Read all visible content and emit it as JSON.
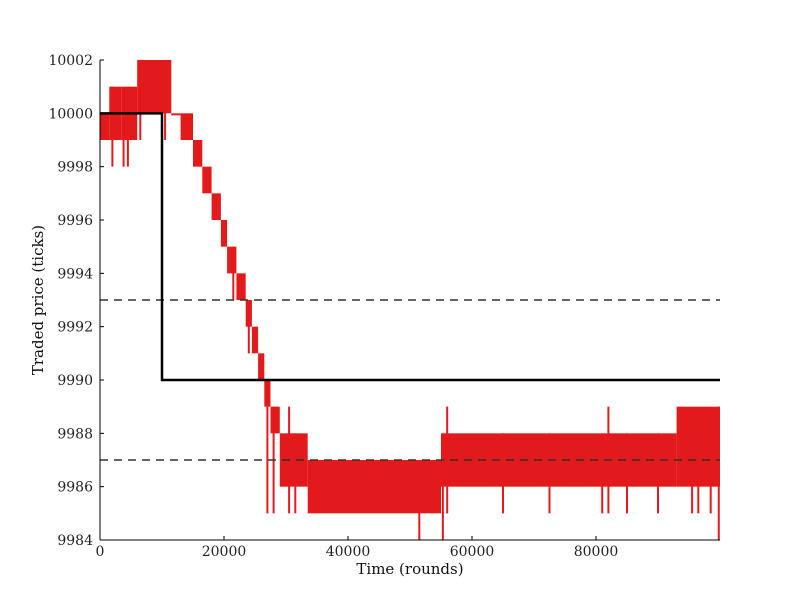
{
  "chart_data": {
    "type": "line",
    "xlabel": "Time (rounds)",
    "ylabel": "Traded price (ticks)",
    "xlim": [
      0,
      100000
    ],
    "ylim": [
      9984,
      10002
    ],
    "x_ticks": [
      0,
      20000,
      40000,
      60000,
      80000
    ],
    "x_tick_labels": [
      "0",
      "20000",
      "40000",
      "60000",
      "80000"
    ],
    "y_ticks": [
      9984,
      9986,
      9988,
      9990,
      9992,
      9994,
      9996,
      9998,
      10000,
      10002
    ],
    "y_tick_labels": [
      "9984",
      "9986",
      "9988",
      "9990",
      "9992",
      "9994",
      "9996",
      "9998",
      "10000",
      "10002"
    ],
    "grid": false,
    "legend": "none",
    "series": [
      {
        "style": "step",
        "color": "#000000",
        "x": [
          0,
          10000,
          10000,
          100000
        ],
        "y": [
          10000,
          10000,
          9990,
          9990
        ]
      },
      {
        "style": "dashed",
        "color": "#333333",
        "x": [
          0,
          100000
        ],
        "y": [
          9993,
          9993
        ]
      },
      {
        "style": "dashed",
        "color": "#333333",
        "x": [
          0,
          100000
        ],
        "y": [
          9987,
          9987
        ]
      },
      {
        "style": "band",
        "color": "#e31a1c",
        "segments": [
          {
            "x": [
              0,
              1500
            ],
            "low": 9999,
            "high": 10000
          },
          {
            "x": [
              1500,
              3500
            ],
            "low": 9999,
            "high": 10001
          },
          {
            "x": [
              3500,
              6000
            ],
            "low": 9999,
            "high": 10001
          },
          {
            "x": [
              6000,
              11500
            ],
            "low": 10000,
            "high": 10002
          },
          {
            "x": [
              11500,
              13000
            ],
            "low": 10000,
            "high": 10000
          },
          {
            "x": [
              13000,
              15000
            ],
            "low": 9999,
            "high": 10000
          },
          {
            "x": [
              15000,
              16500
            ],
            "low": 9998,
            "high": 9999
          },
          {
            "x": [
              16500,
              18000
            ],
            "low": 9997,
            "high": 9998
          },
          {
            "x": [
              18000,
              19500
            ],
            "low": 9996,
            "high": 9997
          },
          {
            "x": [
              19500,
              20500
            ],
            "low": 9995,
            "high": 9996
          },
          {
            "x": [
              20500,
              22000
            ],
            "low": 9994,
            "high": 9995
          },
          {
            "x": [
              22000,
              23500
            ],
            "low": 9993,
            "high": 9994
          },
          {
            "x": [
              23500,
              24500
            ],
            "low": 9992,
            "high": 9993
          },
          {
            "x": [
              24500,
              25500
            ],
            "low": 9991,
            "high": 9992
          },
          {
            "x": [
              25500,
              26500
            ],
            "low": 9990,
            "high": 9991
          },
          {
            "x": [
              26500,
              27500
            ],
            "low": 9989,
            "high": 9990
          },
          {
            "x": [
              27500,
              29000
            ],
            "low": 9988,
            "high": 9989
          },
          {
            "x": [
              29000,
              33500
            ],
            "low": 9986,
            "high": 9988
          },
          {
            "x": [
              33500,
              55000
            ],
            "low": 9985,
            "high": 9987
          },
          {
            "x": [
              55000,
              93000
            ],
            "low": 9986,
            "high": 9988
          },
          {
            "x": [
              93000,
              100000
            ],
            "low": 9986,
            "high": 9989
          }
        ],
        "spikes": [
          {
            "x": 2000,
            "low": 9998,
            "high": 10001
          },
          {
            "x": 3800,
            "low": 9998,
            "high": 10000
          },
          {
            "x": 4500,
            "low": 9998,
            "high": 10001
          },
          {
            "x": 6500,
            "low": 9999,
            "high": 10002
          },
          {
            "x": 10500,
            "low": 9999,
            "high": 10001
          },
          {
            "x": 21500,
            "low": 9993,
            "high": 9995
          },
          {
            "x": 24000,
            "low": 9991,
            "high": 9993
          },
          {
            "x": 27000,
            "low": 9985,
            "high": 9989
          },
          {
            "x": 28000,
            "low": 9985,
            "high": 9989
          },
          {
            "x": 30500,
            "low": 9985,
            "high": 9989
          },
          {
            "x": 31500,
            "low": 9985,
            "high": 9988
          },
          {
            "x": 51500,
            "low": 9984,
            "high": 9987
          },
          {
            "x": 55300,
            "low": 9984,
            "high": 9988
          },
          {
            "x": 56000,
            "low": 9985,
            "high": 9989
          },
          {
            "x": 65000,
            "low": 9985,
            "high": 9988
          },
          {
            "x": 72500,
            "low": 9985,
            "high": 9988
          },
          {
            "x": 81000,
            "low": 9985,
            "high": 9988
          },
          {
            "x": 82000,
            "low": 9985,
            "high": 9989
          },
          {
            "x": 85000,
            "low": 9985,
            "high": 9988
          },
          {
            "x": 90000,
            "low": 9985,
            "high": 9988
          },
          {
            "x": 95500,
            "low": 9985,
            "high": 9987
          },
          {
            "x": 96500,
            "low": 9985,
            "high": 9987
          },
          {
            "x": 98500,
            "low": 9985,
            "high": 9988
          },
          {
            "x": 99800,
            "low": 9984,
            "high": 9989
          }
        ]
      }
    ]
  }
}
